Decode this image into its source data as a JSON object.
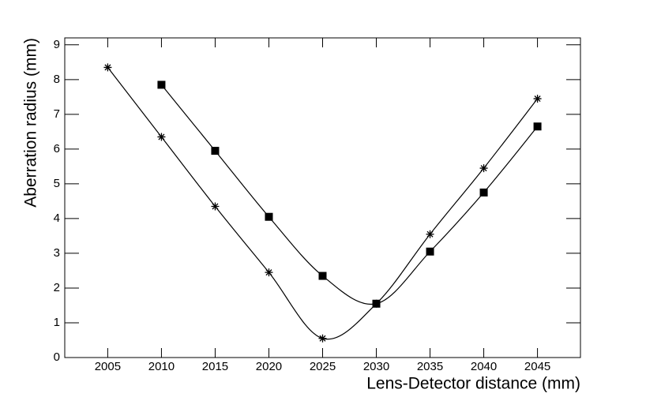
{
  "chart_data": {
    "type": "line",
    "x_label": "Lens-Detector distance (mm)",
    "y_label": "Aberration radius (mm)",
    "x": [
      2005,
      2010,
      2015,
      2020,
      2025,
      2030,
      2035,
      2040,
      2045
    ],
    "series": [
      {
        "color": "#000000",
        "marker": "star",
        "values": [
          8.35,
          6.35,
          4.35,
          2.45,
          0.55,
          1.55,
          3.55,
          5.45,
          7.45
        ]
      },
      {
        "color": "#000000",
        "marker": "square",
        "values": [
          null,
          7.85,
          5.95,
          4.05,
          2.35,
          1.55,
          3.05,
          4.75,
          6.65
        ]
      }
    ],
    "xlim": [
      2001,
      2049
    ],
    "ylim": [
      0,
      9.2
    ],
    "xticks": [
      2005,
      2010,
      2015,
      2020,
      2025,
      2030,
      2035,
      2040,
      2045
    ],
    "yticks": [
      0,
      1,
      2,
      3,
      4,
      5,
      6,
      7,
      8,
      9
    ],
    "grid": false
  }
}
